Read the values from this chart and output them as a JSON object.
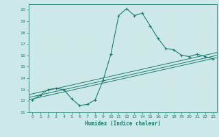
{
  "xlabel": "Humidex (Indice chaleur)",
  "xlim": [
    -0.5,
    23.5
  ],
  "ylim": [
    11,
    20.5
  ],
  "yticks": [
    11,
    12,
    13,
    14,
    15,
    16,
    17,
    18,
    19,
    20
  ],
  "xticks": [
    0,
    1,
    2,
    3,
    4,
    5,
    6,
    7,
    8,
    9,
    10,
    11,
    12,
    13,
    14,
    15,
    16,
    17,
    18,
    19,
    20,
    21,
    22,
    23
  ],
  "bg_color": "#cce8e8",
  "grid_color": "#e8f4f4",
  "line_color": "#1a7a6e",
  "main_line_x": [
    0,
    1,
    2,
    3,
    4,
    5,
    6,
    7,
    8,
    9,
    10,
    11,
    12,
    13,
    14,
    15,
    16,
    17,
    18,
    19,
    20,
    21,
    22,
    23
  ],
  "main_line_y": [
    12.1,
    12.5,
    13.0,
    13.1,
    13.0,
    12.2,
    11.6,
    11.7,
    12.1,
    13.8,
    16.1,
    19.5,
    20.1,
    19.5,
    19.7,
    18.6,
    17.5,
    16.6,
    16.5,
    16.0,
    15.9,
    16.1,
    15.9,
    15.7
  ],
  "line2_y_start": 12.1,
  "line2_y_end": 15.8,
  "line3_y_start": 12.3,
  "line3_y_end": 16.0,
  "line4_y_start": 12.55,
  "line4_y_end": 16.25
}
